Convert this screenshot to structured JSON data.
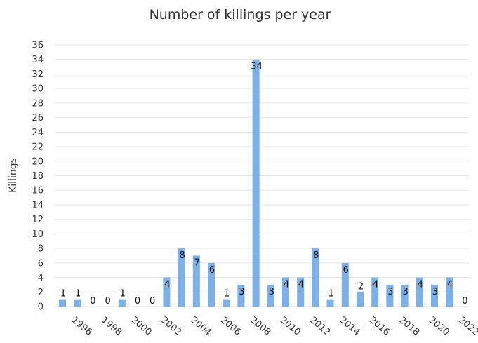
{
  "chart_data": {
    "type": "bar",
    "title": "Number of killings per year",
    "xlabel": "",
    "ylabel": "Killings",
    "ylim": [
      0,
      36
    ],
    "yticks": [
      0,
      2,
      4,
      6,
      8,
      10,
      12,
      14,
      16,
      18,
      20,
      22,
      24,
      26,
      28,
      30,
      32,
      34,
      36
    ],
    "xtick_labels": [
      "1996",
      "1998",
      "2000",
      "2002",
      "2004",
      "2006",
      "2008",
      "2010",
      "2012",
      "2014",
      "2016",
      "2018",
      "2020",
      "2022"
    ],
    "categories": [
      "1995",
      "1996",
      "1997",
      "1998",
      "1999",
      "2000",
      "2001",
      "2002",
      "2003",
      "2004",
      "2005",
      "2006",
      "2007",
      "2008",
      "2009",
      "2010",
      "2011",
      "2012",
      "2013",
      "2014",
      "2015",
      "2016",
      "2017",
      "2018",
      "2019",
      "2020",
      "2021",
      "2022"
    ],
    "values": [
      1,
      1,
      0,
      0,
      1,
      0,
      0,
      4,
      8,
      7,
      6,
      1,
      3,
      34,
      3,
      4,
      4,
      8,
      1,
      6,
      2,
      4,
      3,
      3,
      4,
      3,
      4,
      0
    ],
    "grid": true,
    "legend": "none",
    "bar_color": "#7cb0e6"
  }
}
